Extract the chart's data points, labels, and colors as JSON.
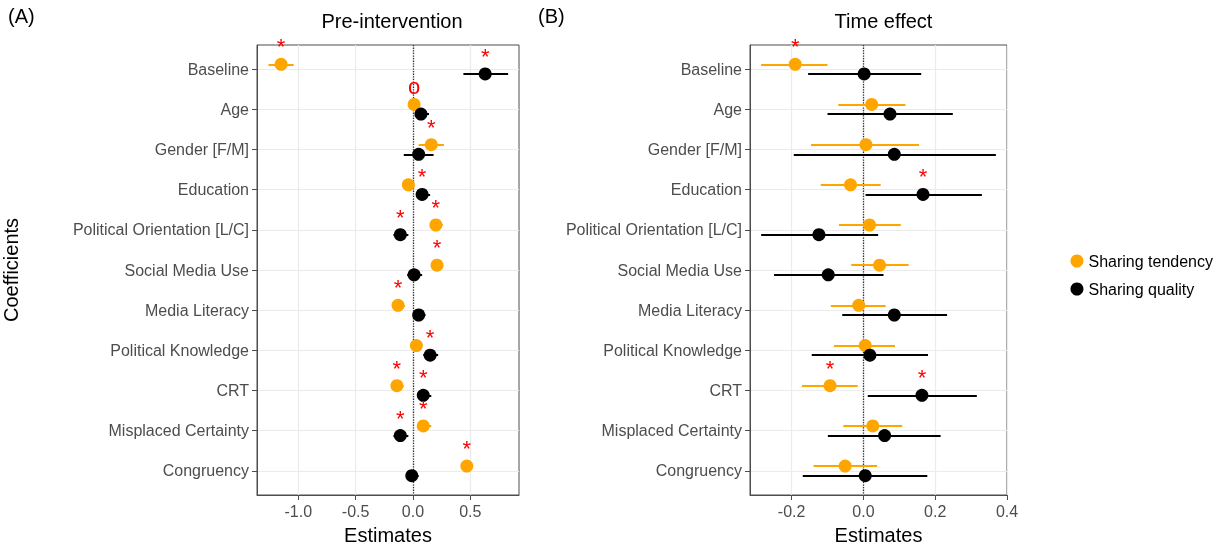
{
  "chart_data": [
    {
      "type": "scatter",
      "orientation": "horizontal",
      "title": "Pre-intervention",
      "xlabel": "Estimates",
      "ylabel": "Coefficients",
      "annotations": [
        "(A)"
      ],
      "categories": [
        "Baseline",
        "Age",
        "Gender [F/M]",
        "Education",
        "Political Orientation [L/C]",
        "Social Media Use",
        "Media Literacy",
        "Political Knowledge",
        "CRT",
        "Misplaced Certainty",
        "Congruency"
      ],
      "series": [
        {
          "color": "#ffa500",
          "values": [
            -1.15,
            0.01,
            0.16,
            -0.04,
            0.2,
            0.21,
            -0.13,
            0.03,
            -0.14,
            0.09,
            0.47
          ],
          "errors": [
            [
              -1.26,
              -1.04
            ],
            [
              -0.03,
              0.05
            ],
            [
              0.05,
              0.27
            ],
            [
              -0.08,
              0.01
            ],
            [
              0.16,
              0.26
            ],
            [
              0.17,
              0.26
            ],
            [
              -0.17,
              -0.07
            ],
            [
              -0.02,
              0.08
            ],
            [
              -0.18,
              -0.08
            ],
            [
              0.05,
              0.16
            ],
            [
              0.44,
              0.51
            ]
          ],
          "value_labels": [
            "*",
            "o",
            "*",
            null,
            "*",
            "*",
            "*",
            null,
            "*",
            "*",
            "*"
          ]
        },
        {
          "color": "#000000",
          "values": [
            0.63,
            0.07,
            0.05,
            0.08,
            -0.11,
            0.01,
            0.05,
            0.15,
            0.09,
            -0.11,
            -0.01
          ],
          "errors": [
            [
              0.44,
              0.83
            ],
            [
              0.02,
              0.14
            ],
            [
              -0.08,
              0.18
            ],
            [
              0.03,
              0.15
            ],
            [
              -0.17,
              -0.04
            ],
            [
              -0.05,
              0.08
            ],
            [
              0.0,
              0.11
            ],
            [
              0.09,
              0.22
            ],
            [
              0.04,
              0.16
            ],
            [
              -0.17,
              -0.04
            ],
            [
              -0.05,
              0.05
            ]
          ],
          "value_labels": [
            "*",
            null,
            null,
            "*",
            "*",
            null,
            null,
            "*",
            "*",
            "*",
            null
          ]
        }
      ],
      "xlim": [
        -1.36,
        0.925
      ],
      "xticks": [
        {
          "value": -1,
          "label": "-1.0"
        },
        {
          "value": -0.5,
          "label": "-0.5"
        },
        {
          "value": 0,
          "label": "0.0"
        },
        {
          "value": 0.5,
          "label": "0.5"
        }
      ],
      "ref_lines": [
        {
          "axis": "x",
          "value": 0,
          "color": "#333333",
          "line_style": "dotted"
        }
      ],
      "grid": true,
      "marker": "circle",
      "legend": false
    },
    {
      "type": "scatter",
      "orientation": "horizontal",
      "title": "Time effect",
      "xlabel": "Estimates",
      "annotations": [
        "(B)"
      ],
      "categories": [
        "Baseline",
        "Age",
        "Gender [F/M]",
        "Education",
        "Political Orientation [L/C]",
        "Social Media Use",
        "Media Literacy",
        "Political Knowledge",
        "CRT",
        "Misplaced Certainty",
        "Congruency"
      ],
      "series": [
        {
          "name": "Sharing tendency",
          "color": "#ffa500",
          "values": [
            -0.19,
            0.023,
            0.007,
            -0.036,
            0.017,
            0.045,
            -0.013,
            0.005,
            -0.093,
            0.026,
            -0.051
          ],
          "errors": [
            [
              -0.285,
              -0.1
            ],
            [
              -0.07,
              0.117
            ],
            [
              -0.146,
              0.155
            ],
            [
              -0.119,
              0.048
            ],
            [
              -0.068,
              0.104
            ],
            [
              -0.034,
              0.126
            ],
            [
              -0.091,
              0.062
            ],
            [
              -0.082,
              0.088
            ],
            [
              -0.171,
              -0.016
            ],
            [
              -0.056,
              0.108
            ],
            [
              -0.139,
              0.038
            ]
          ],
          "value_labels": [
            "*",
            null,
            null,
            null,
            null,
            null,
            null,
            null,
            "*",
            null,
            null
          ]
        },
        {
          "name": "Sharing quality",
          "color": "#000000",
          "values": [
            0.002,
            0.074,
            0.086,
            0.166,
            -0.124,
            -0.098,
            0.086,
            0.018,
            0.163,
            0.059,
            0.005
          ],
          "errors": [
            [
              -0.154,
              0.161
            ],
            [
              -0.1,
              0.249
            ],
            [
              -0.194,
              0.369
            ],
            [
              0.006,
              0.33
            ],
            [
              -0.285,
              0.041
            ],
            [
              -0.249,
              0.056
            ],
            [
              -0.059,
              0.233
            ],
            [
              -0.144,
              0.18
            ],
            [
              0.012,
              0.316
            ],
            [
              -0.099,
              0.215
            ],
            [
              -0.169,
              0.178
            ]
          ],
          "value_labels": [
            null,
            null,
            null,
            "*",
            null,
            null,
            null,
            null,
            "*",
            null,
            null
          ]
        }
      ],
      "xlim": [
        -0.316,
        0.4
      ],
      "xticks": [
        {
          "value": -0.2,
          "label": "-0.2"
        },
        {
          "value": 0,
          "label": "0.0"
        },
        {
          "value": 0.2,
          "label": "0.2"
        },
        {
          "value": 0.4,
          "label": "0.4"
        }
      ],
      "ref_lines": [
        {
          "axis": "x",
          "value": 0,
          "color": "#333333",
          "line_style": "dotted"
        }
      ],
      "grid": true,
      "marker": "circle",
      "legend": "right"
    }
  ]
}
